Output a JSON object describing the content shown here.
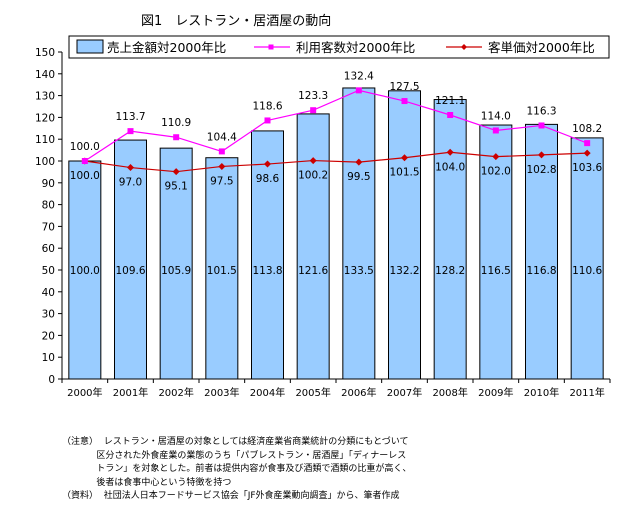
{
  "chart_data": {
    "type": "bar",
    "title": "図1　レストラン・居酒屋の動向",
    "categories": [
      "2000年",
      "2001年",
      "2002年",
      "2003年",
      "2004年",
      "2005年",
      "2006年",
      "2007年",
      "2008年",
      "2009年",
      "2010年",
      "2011年"
    ],
    "ylim": [
      0,
      150
    ],
    "yticks": [
      0,
      10,
      20,
      30,
      40,
      50,
      60,
      70,
      80,
      90,
      100,
      110,
      120,
      130,
      140,
      150
    ],
    "grid": false,
    "legend_position": "top",
    "series": [
      {
        "name": "売上金額対2000年比",
        "type": "bar",
        "color": "#99CCFF",
        "values": [
          100.0,
          109.6,
          105.9,
          101.5,
          113.8,
          121.6,
          133.5,
          132.2,
          128.2,
          116.5,
          116.8,
          110.6
        ],
        "labels": [
          "100.0",
          "109.6",
          "105.9",
          "101.5",
          "113.8",
          "121.6",
          "133.5",
          "132.2",
          "128.2",
          "116.5",
          "116.8",
          "110.6"
        ]
      },
      {
        "name": "利用客数対2000年比",
        "type": "line",
        "color": "#FF00FF",
        "marker": "square",
        "values": [
          100.0,
          113.7,
          110.9,
          104.4,
          118.6,
          123.3,
          132.4,
          127.5,
          121.1,
          114.0,
          116.3,
          108.2
        ],
        "labels": [
          "100.0",
          "113.7",
          "110.9",
          "104.4",
          "118.6",
          "123.3",
          "132.4",
          "127.5",
          "121.1",
          "114.0",
          "116.3",
          "108.2"
        ]
      },
      {
        "name": "客単価対2000年比",
        "type": "line",
        "color": "#CC0000",
        "marker": "diamond",
        "values": [
          100.0,
          97.0,
          95.1,
          97.5,
          98.6,
          100.2,
          99.5,
          101.5,
          104.0,
          102.0,
          102.8,
          103.6
        ],
        "labels": [
          "100.0",
          "97.0",
          "95.1",
          "97.5",
          "98.6",
          "100.2",
          "99.5",
          "101.5",
          "104.0",
          "102.0",
          "102.8",
          "103.6"
        ]
      }
    ]
  },
  "notes": [
    "（注意）  レストラン・居酒屋の対象としては経済産業省商業統計の分類にもとづいて",
    "            区分された外食産業の業態のうち「パブレストラン・居酒屋」「ディナーレス",
    "            トラン」を対象とした。前者は提供内容が食事及び酒類で酒類の比重が高く、",
    "            後者は食事中心という特徴を持つ",
    "（資料）  社団法人日本フードサービス協会「JF外食産業動向調査」から、筆者作成"
  ]
}
